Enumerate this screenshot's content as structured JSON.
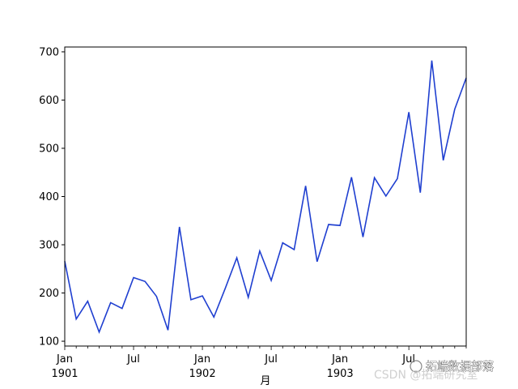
{
  "chart_data": {
    "type": "line",
    "xlabel": "月",
    "ylabel": "",
    "title": "",
    "x": [
      "1901-01",
      "1901-02",
      "1901-03",
      "1901-04",
      "1901-05",
      "1901-06",
      "1901-07",
      "1901-08",
      "1901-09",
      "1901-10",
      "1901-11",
      "1901-12",
      "1902-01",
      "1902-02",
      "1902-03",
      "1902-04",
      "1902-05",
      "1902-06",
      "1902-07",
      "1902-08",
      "1902-09",
      "1902-10",
      "1902-11",
      "1902-12",
      "1903-01",
      "1903-02",
      "1903-03",
      "1903-04",
      "1903-05",
      "1903-06",
      "1903-07",
      "1903-08",
      "1903-09",
      "1903-10",
      "1903-11",
      "1903-12"
    ],
    "series": [
      {
        "values": [
          266,
          146,
          183,
          119,
          180,
          168,
          232,
          224,
          193,
          123,
          337,
          186,
          194,
          150,
          210,
          273,
          191,
          287,
          226,
          304,
          290,
          422,
          265,
          342,
          340,
          440,
          316,
          439,
          401,
          437,
          575,
          408,
          682,
          475,
          581,
          646
        ],
        "color": "#1f3fd0"
      }
    ],
    "ylim": [
      90,
      710
    ],
    "yticks": [
      100,
      200,
      300,
      400,
      500,
      600,
      700
    ],
    "xticks": [
      {
        "x": "1901-01",
        "label": "Jan",
        "sublabel": "1901"
      },
      {
        "x": "1901-07",
        "label": "Jul",
        "sublabel": ""
      },
      {
        "x": "1902-01",
        "label": "Jan",
        "sublabel": "1902"
      },
      {
        "x": "1902-07",
        "label": "Jul",
        "sublabel": ""
      },
      {
        "x": "1903-01",
        "label": "Jan",
        "sublabel": "1903"
      },
      {
        "x": "1903-07",
        "label": "Jul",
        "sublabel": ""
      }
    ],
    "grid": false,
    "legend": "none"
  },
  "watermark": {
    "line1": "拓端数据部落",
    "line2": "CSDN @拓端研究室"
  }
}
